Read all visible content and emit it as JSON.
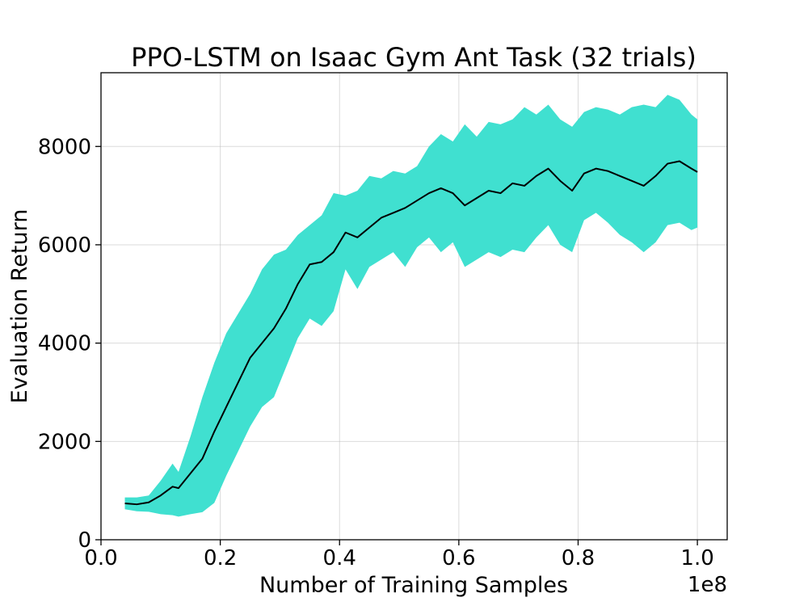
{
  "chart_data": {
    "type": "area",
    "title": "PPO-LSTM on Isaac Gym Ant Task (32 trials)",
    "xlabel": "Number of Training Samples",
    "ylabel": "Evaluation Return",
    "x_offset_text": "1e8",
    "xlim": [
      0.0,
      1.05
    ],
    "ylim": [
      0,
      9500
    ],
    "x_ticks": [
      0.0,
      0.2,
      0.4,
      0.6,
      0.8,
      1.0
    ],
    "x_tick_labels": [
      "0.0",
      "0.2",
      "0.4",
      "0.6",
      "0.8",
      "1.0"
    ],
    "y_ticks": [
      0,
      2000,
      4000,
      6000,
      8000
    ],
    "y_tick_labels": [
      "0",
      "2000",
      "4000",
      "6000",
      "8000"
    ],
    "grid": true,
    "colors": {
      "band": "#40E0D0",
      "mean": "#000000"
    },
    "series": [
      {
        "x": [
          0.04,
          0.06,
          0.08,
          0.1,
          0.12,
          0.13,
          0.15,
          0.17,
          0.19,
          0.21,
          0.23,
          0.25,
          0.27,
          0.29,
          0.31,
          0.33,
          0.35,
          0.37,
          0.39,
          0.41,
          0.43,
          0.45,
          0.47,
          0.49,
          0.51,
          0.53,
          0.55,
          0.57,
          0.59,
          0.61,
          0.63,
          0.65,
          0.67,
          0.69,
          0.71,
          0.73,
          0.75,
          0.77,
          0.79,
          0.81,
          0.83,
          0.85,
          0.87,
          0.89,
          0.91,
          0.93,
          0.95,
          0.97,
          0.99,
          1.0
        ],
        "mean": [
          740,
          720,
          760,
          900,
          1080,
          1050,
          1350,
          1650,
          2200,
          2700,
          3200,
          3700,
          4000,
          4300,
          4700,
          5200,
          5600,
          5650,
          5850,
          6250,
          6150,
          6350,
          6550,
          6650,
          6750,
          6900,
          7050,
          7150,
          7050,
          6800,
          6950,
          7100,
          7050,
          7250,
          7200,
          7400,
          7550,
          7300,
          7100,
          7450,
          7550,
          7500,
          7400,
          7300,
          7200,
          7400,
          7650,
          7700,
          7550,
          7480
        ],
        "upper": [
          860,
          860,
          900,
          1200,
          1550,
          1380,
          2100,
          2900,
          3600,
          4200,
          4600,
          5000,
          5500,
          5800,
          5900,
          6200,
          6400,
          6600,
          7050,
          7000,
          7100,
          7400,
          7350,
          7500,
          7450,
          7600,
          8000,
          8250,
          8100,
          8450,
          8200,
          8500,
          8450,
          8550,
          8800,
          8650,
          8850,
          8550,
          8400,
          8700,
          8800,
          8750,
          8650,
          8800,
          8850,
          8800,
          9050,
          8950,
          8650,
          8550
        ],
        "lower": [
          620,
          580,
          570,
          520,
          500,
          470,
          520,
          560,
          750,
          1300,
          1800,
          2300,
          2700,
          2900,
          3500,
          4100,
          4500,
          4350,
          4650,
          5500,
          5100,
          5550,
          5700,
          5850,
          5550,
          5950,
          6150,
          5850,
          6050,
          5550,
          5700,
          5850,
          5750,
          5900,
          5850,
          6150,
          6400,
          6000,
          5850,
          6500,
          6650,
          6450,
          6200,
          6050,
          5850,
          6050,
          6400,
          6450,
          6300,
          6350
        ]
      }
    ]
  }
}
